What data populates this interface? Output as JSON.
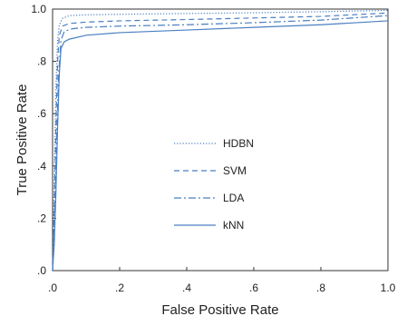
{
  "chart_data": {
    "type": "line",
    "title": "",
    "xlabel": "False Positive Rate",
    "ylabel": "True Positive Rate",
    "xlim": [
      0,
      1
    ],
    "ylim": [
      0,
      1
    ],
    "x_ticks": [
      0,
      0.2,
      0.4,
      0.6,
      0.8,
      1.0
    ],
    "x_tick_labels": [
      ".0",
      ".2",
      ".4",
      ".6",
      ".8",
      "1.0"
    ],
    "y_ticks": [
      0,
      0.2,
      0.4,
      0.6,
      0.8,
      1.0
    ],
    "y_tick_labels": [
      ".0",
      ".2",
      ".4",
      ".6",
      ".8",
      "1.0"
    ],
    "grid": false,
    "legend_position": "center",
    "line_color": "#4a7fc1",
    "series": [
      {
        "name": "HDBN",
        "style": "dotted",
        "points": [
          [
            0,
            0
          ],
          [
            0.005,
            0.35
          ],
          [
            0.01,
            0.7
          ],
          [
            0.015,
            0.88
          ],
          [
            0.02,
            0.94
          ],
          [
            0.03,
            0.965
          ],
          [
            0.05,
            0.975
          ],
          [
            0.1,
            0.978
          ],
          [
            0.2,
            0.98
          ],
          [
            0.4,
            0.983
          ],
          [
            0.6,
            0.986
          ],
          [
            0.8,
            0.99
          ],
          [
            1.0,
            0.995
          ]
        ]
      },
      {
        "name": "SVM",
        "style": "dashed",
        "points": [
          [
            0,
            0
          ],
          [
            0.005,
            0.25
          ],
          [
            0.01,
            0.55
          ],
          [
            0.015,
            0.8
          ],
          [
            0.02,
            0.9
          ],
          [
            0.03,
            0.935
          ],
          [
            0.05,
            0.945
          ],
          [
            0.1,
            0.95
          ],
          [
            0.2,
            0.955
          ],
          [
            0.4,
            0.96
          ],
          [
            0.6,
            0.966
          ],
          [
            0.8,
            0.972
          ],
          [
            1.0,
            0.985
          ]
        ]
      },
      {
        "name": "LDA",
        "style": "dashdot",
        "points": [
          [
            0,
            0
          ],
          [
            0.006,
            0.2
          ],
          [
            0.012,
            0.5
          ],
          [
            0.018,
            0.75
          ],
          [
            0.025,
            0.88
          ],
          [
            0.035,
            0.915
          ],
          [
            0.06,
            0.925
          ],
          [
            0.1,
            0.93
          ],
          [
            0.2,
            0.935
          ],
          [
            0.4,
            0.94
          ],
          [
            0.6,
            0.948
          ],
          [
            0.8,
            0.958
          ],
          [
            1.0,
            0.975
          ]
        ]
      },
      {
        "name": "kNN",
        "style": "solid",
        "points": [
          [
            0,
            0
          ],
          [
            0.005,
            0.1
          ],
          [
            0.01,
            0.3
          ],
          [
            0.015,
            0.55
          ],
          [
            0.02,
            0.75
          ],
          [
            0.025,
            0.85
          ],
          [
            0.035,
            0.875
          ],
          [
            0.05,
            0.885
          ],
          [
            0.1,
            0.9
          ],
          [
            0.2,
            0.91
          ],
          [
            0.4,
            0.92
          ],
          [
            0.6,
            0.93
          ],
          [
            0.8,
            0.94
          ],
          [
            1.0,
            0.955
          ]
        ]
      }
    ]
  }
}
